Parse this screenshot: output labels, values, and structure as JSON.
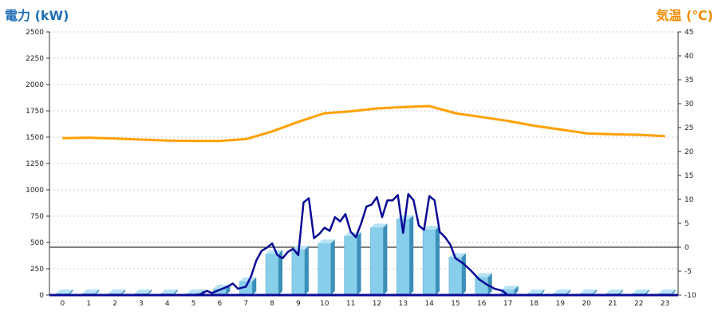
{
  "left_axis_title": "電力 (kW)",
  "right_axis_title": "気温 (℃)",
  "colors": {
    "bar": "#87ceeb",
    "bar_dark": "#3a8fb8",
    "power_line": "#0a0a96",
    "temp_line": "#ffa000",
    "left_title": "#1f6fb5",
    "right_title": "#f08a00"
  },
  "chart_data": {
    "type": "bar",
    "categories": [
      "0",
      "1",
      "2",
      "3",
      "4",
      "5",
      "6",
      "7",
      "8",
      "9",
      "10",
      "11",
      "12",
      "13",
      "14",
      "15",
      "16",
      "17",
      "18",
      "19",
      "20",
      "21",
      "22",
      "23"
    ],
    "ylim_left": [
      0,
      2500
    ],
    "left_ticks": [
      0,
      250,
      500,
      750,
      1000,
      1250,
      1500,
      1750,
      2000,
      2250,
      2500
    ],
    "ylim_right": [
      -10,
      45
    ],
    "right_ticks": [
      -10,
      -5,
      0,
      5,
      10,
      15,
      20,
      25,
      30,
      35,
      40,
      45
    ],
    "grid": true,
    "series": [
      {
        "type": "bar",
        "axis": "left",
        "values": [
          0,
          0,
          0,
          0,
          0,
          0,
          60,
          130,
          390,
          430,
          490,
          560,
          640,
          720,
          620,
          360,
          170,
          50,
          0,
          0,
          0,
          0,
          0,
          0
        ]
      },
      {
        "type": "line",
        "axis": "left",
        "x": [
          5.0,
          5.3,
          5.5,
          5.7,
          6.0,
          6.3,
          6.5,
          6.7,
          7.0,
          7.2,
          7.4,
          7.6,
          7.8,
          8.0,
          8.2,
          8.4,
          8.6,
          8.8,
          9.0,
          9.2,
          9.4,
          9.6,
          9.8,
          10.0,
          10.2,
          10.4,
          10.6,
          10.8,
          11.0,
          11.2,
          11.4,
          11.6,
          11.8,
          12.0,
          12.2,
          12.4,
          12.6,
          12.8,
          13.0,
          13.2,
          13.4,
          13.6,
          13.8,
          14.0,
          14.2,
          14.4,
          14.6,
          14.8,
          15.0,
          15.3,
          15.6,
          15.9,
          16.2,
          16.5,
          16.8,
          17.0
        ],
        "values": [
          0,
          10,
          40,
          20,
          50,
          80,
          110,
          60,
          80,
          180,
          330,
          420,
          450,
          490,
          380,
          350,
          410,
          440,
          380,
          880,
          920,
          540,
          580,
          640,
          610,
          740,
          700,
          770,
          600,
          550,
          680,
          840,
          860,
          930,
          740,
          900,
          900,
          950,
          590,
          960,
          900,
          660,
          620,
          940,
          900,
          600,
          550,
          480,
          350,
          300,
          230,
          150,
          100,
          60,
          40,
          0
        ]
      },
      {
        "type": "line",
        "axis": "right",
        "x": [
          0,
          1,
          2,
          3,
          4,
          5,
          6,
          7,
          8,
          9,
          10,
          11,
          12,
          13,
          14,
          15,
          16,
          17,
          18,
          19,
          20,
          21,
          22,
          23
        ],
        "values": [
          22.8,
          22.9,
          22.7,
          22.5,
          22.3,
          22.2,
          22.2,
          22.6,
          24.2,
          26.2,
          28.0,
          28.4,
          29.0,
          29.3,
          29.5,
          28.0,
          27.2,
          26.4,
          25.4,
          24.6,
          23.8,
          23.6,
          23.5,
          23.2
        ]
      }
    ]
  }
}
